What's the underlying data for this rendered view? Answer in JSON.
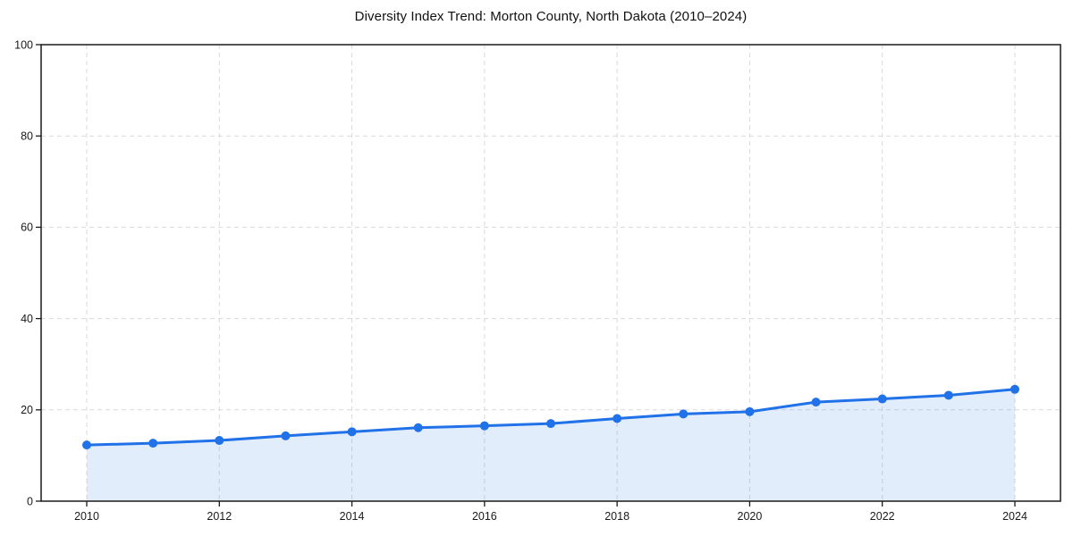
{
  "chart_data": {
    "type": "line",
    "title": "Diversity Index Trend: Morton County, North Dakota (2010–2024)",
    "x": [
      2010,
      2011,
      2012,
      2013,
      2014,
      2015,
      2016,
      2017,
      2018,
      2019,
      2020,
      2021,
      2022,
      2023,
      2024
    ],
    "values": [
      12.3,
      12.7,
      13.3,
      14.3,
      15.2,
      16.1,
      16.5,
      17.0,
      18.1,
      19.1,
      19.6,
      21.7,
      22.4,
      23.2,
      24.5
    ],
    "series_name": "Diversity Index",
    "xlabel": "",
    "ylabel": "",
    "ylim": [
      0,
      100
    ],
    "yticks": [
      0,
      20,
      40,
      60,
      80,
      100
    ],
    "xticks": [
      2010,
      2012,
      2014,
      2016,
      2018,
      2020,
      2022,
      2024
    ],
    "grid": true,
    "grid_style": "dashed",
    "area_fill": true,
    "legend": false,
    "marker": "circle",
    "colors": {
      "line": "#2171e8",
      "fill": "rgba(33,113,232,0.13)",
      "grid": "#d9d9d9",
      "axis": "#1a1a1a",
      "tick_label": "#1a1a1a",
      "title": "#111111",
      "background": "#ffffff"
    }
  }
}
